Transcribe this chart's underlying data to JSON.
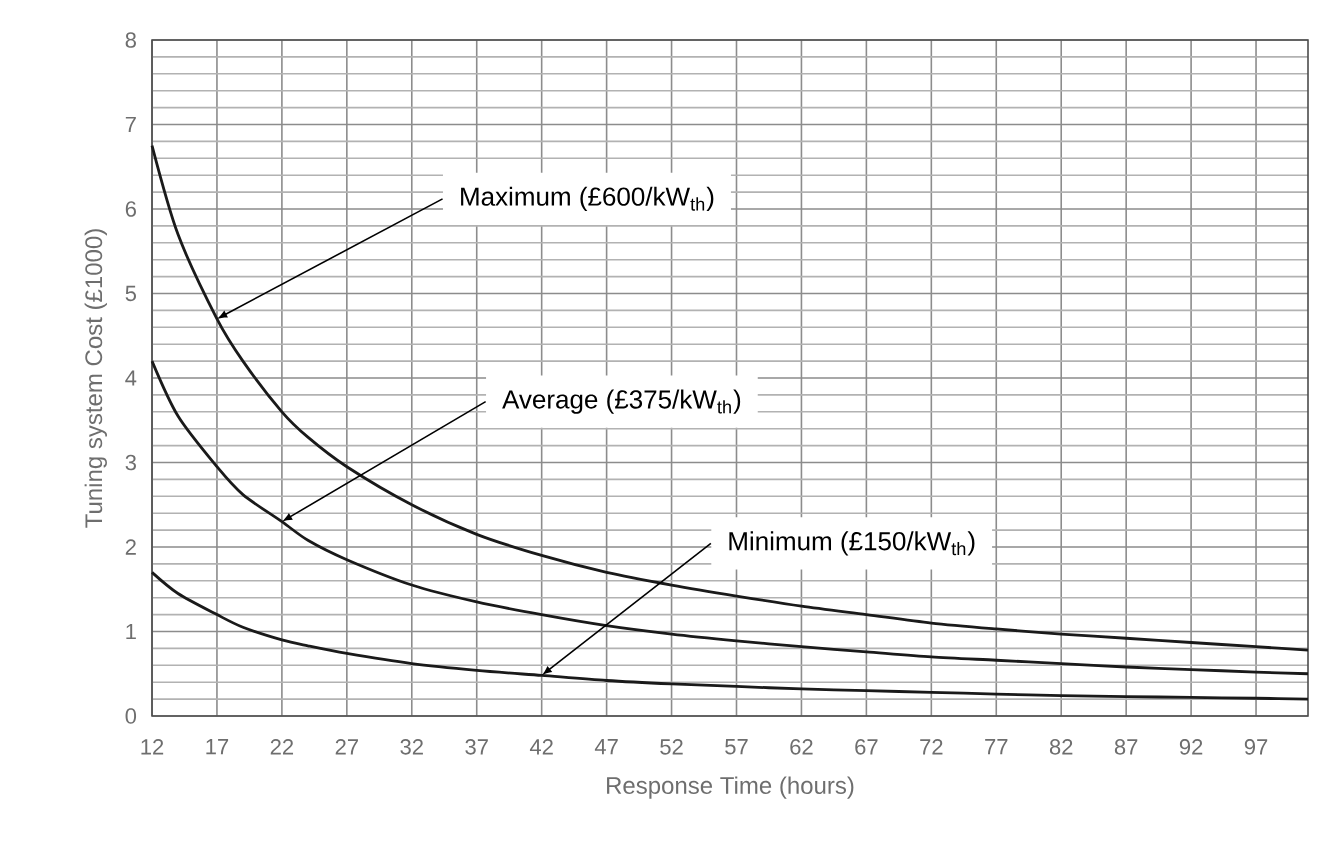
{
  "chart_data": {
    "type": "line",
    "xlabel": "Response Time (hours)",
    "ylabel": "Tuning system Cost (£1000)",
    "xlim": [
      12,
      101
    ],
    "ylim": [
      0,
      8
    ],
    "xticks": [
      12,
      17,
      22,
      27,
      32,
      37,
      42,
      47,
      52,
      57,
      62,
      67,
      72,
      77,
      82,
      87,
      92,
      97
    ],
    "yticks": [
      0,
      1,
      2,
      3,
      4,
      5,
      6,
      7,
      8
    ],
    "grid": true,
    "marker": "none",
    "line_style": "solid",
    "series": [
      {
        "color": "#1a1a1a",
        "x": [
          12,
          14,
          17,
          19,
          22,
          24,
          27,
          32,
          37,
          42,
          47,
          52,
          57,
          62,
          67,
          72,
          77,
          82,
          87,
          92,
          97,
          101
        ],
        "values": [
          6.75,
          5.7,
          4.7,
          4.2,
          3.6,
          3.3,
          2.95,
          2.5,
          2.15,
          1.9,
          1.7,
          1.55,
          1.42,
          1.3,
          1.2,
          1.1,
          1.03,
          0.97,
          0.92,
          0.87,
          0.82,
          0.78
        ]
      },
      {
        "color": "#1a1a1a",
        "x": [
          12,
          14,
          17,
          19,
          22,
          24,
          27,
          32,
          37,
          42,
          47,
          52,
          57,
          62,
          67,
          72,
          77,
          82,
          87,
          92,
          97,
          101
        ],
        "values": [
          4.2,
          3.55,
          2.95,
          2.62,
          2.3,
          2.08,
          1.85,
          1.55,
          1.35,
          1.2,
          1.07,
          0.97,
          0.89,
          0.82,
          0.76,
          0.7,
          0.66,
          0.62,
          0.58,
          0.55,
          0.52,
          0.5
        ]
      },
      {
        "color": "#1a1a1a",
        "x": [
          12,
          14,
          17,
          19,
          22,
          24,
          27,
          32,
          37,
          42,
          47,
          52,
          57,
          62,
          67,
          72,
          77,
          82,
          87,
          92,
          97,
          101
        ],
        "values": [
          1.7,
          1.45,
          1.2,
          1.05,
          0.9,
          0.83,
          0.74,
          0.62,
          0.54,
          0.48,
          0.42,
          0.38,
          0.35,
          0.32,
          0.3,
          0.28,
          0.26,
          0.24,
          0.23,
          0.22,
          0.21,
          0.2
        ]
      }
    ],
    "annotations": [
      {
        "text": "Maximum (£600/kW$_{th}$)",
        "x": 17,
        "y": 4.7
      },
      {
        "text": "Average (£375/kW$_{th}$)",
        "x": 22,
        "y": 2.3
      },
      {
        "text": "Minimum (£150/kW$_{th}$)",
        "x": 42,
        "y": 0.48
      }
    ]
  }
}
